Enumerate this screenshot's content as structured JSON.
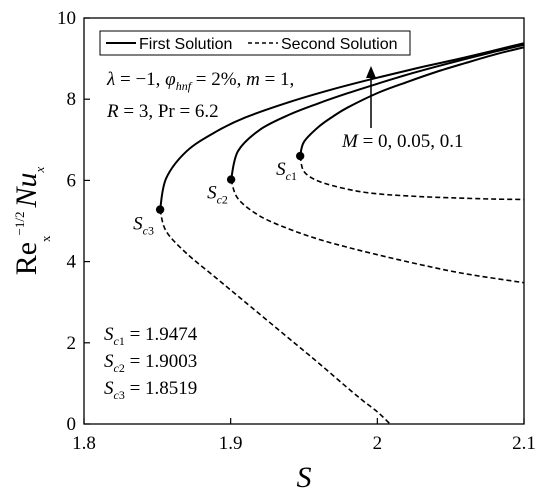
{
  "chart_data": {
    "type": "line",
    "xlabel": "S",
    "ylabel": {
      "main": "Re",
      "sup": "−1/2",
      "sub": "x",
      "tail": "Nu",
      "tail_sub": "x"
    },
    "xlim": [
      1.8,
      2.1
    ],
    "ylim": [
      0,
      10
    ],
    "x_ticks": [
      "1.8",
      "1.9",
      "2",
      "2.1"
    ],
    "y_ticks": [
      "0",
      "2",
      "4",
      "6",
      "8",
      "10"
    ],
    "x_tick_values": [
      1.8,
      1.9,
      2.0,
      2.1
    ],
    "y_tick_values": [
      0,
      2,
      4,
      6,
      8,
      10
    ],
    "grid": false,
    "legend": {
      "position": "top",
      "entries": [
        {
          "label": "First Solution",
          "style": "solid"
        },
        {
          "label": "Second Solution",
          "style": "dashed"
        }
      ]
    },
    "parameters_line1": "λ = −1, φhnf = 2%, m = 1,",
    "parameters_line2": "R = 3, Pr = 6.2",
    "arrow_label": "M = 0, 0.05, 0.1",
    "critical_values": [
      {
        "label": "Sc1 = 1.9474",
        "s": 1.9474,
        "y": 6.6
      },
      {
        "label": "Sc2 = 1.9003",
        "s": 1.9003,
        "y": 6.02
      },
      {
        "label": "Sc3 = 1.8519",
        "s": 1.8519,
        "y": 5.28
      }
    ],
    "series": [
      {
        "curve": "Sc1",
        "first": {
          "x": [
            1.9474,
            1.95,
            1.96,
            1.97,
            1.98,
            2.0,
            2.02,
            2.04,
            2.06,
            2.08,
            2.1
          ],
          "y": [
            6.6,
            6.95,
            7.32,
            7.58,
            7.8,
            8.15,
            8.42,
            8.67,
            8.89,
            9.1,
            9.28
          ]
        },
        "second": {
          "x": [
            1.9474,
            1.95,
            1.96,
            1.98,
            2.0,
            2.03,
            2.06,
            2.08,
            2.1
          ],
          "y": [
            6.6,
            6.22,
            5.98,
            5.78,
            5.67,
            5.6,
            5.56,
            5.54,
            5.53
          ]
        }
      },
      {
        "curve": "Sc2",
        "first": {
          "x": [
            1.9003,
            1.905,
            1.92,
            1.94,
            1.96,
            1.98,
            2.0,
            2.02,
            2.04,
            2.06,
            2.08,
            2.1
          ],
          "y": [
            6.02,
            6.72,
            7.25,
            7.62,
            7.9,
            8.15,
            8.38,
            8.6,
            8.8,
            8.99,
            9.17,
            9.34
          ]
        },
        "second": {
          "x": [
            1.9003,
            1.905,
            1.92,
            1.94,
            1.96,
            1.98,
            2.0,
            2.03,
            2.06,
            2.1
          ],
          "y": [
            6.02,
            5.55,
            5.12,
            4.8,
            4.55,
            4.35,
            4.17,
            3.92,
            3.7,
            3.48
          ]
        }
      },
      {
        "curve": "Sc3",
        "first": {
          "x": [
            1.8519,
            1.856,
            1.87,
            1.89,
            1.91,
            1.94,
            1.97,
            2.0,
            2.03,
            2.06,
            2.1
          ],
          "y": [
            5.28,
            6.05,
            6.72,
            7.2,
            7.55,
            7.93,
            8.25,
            8.53,
            8.79,
            9.03,
            9.38
          ]
        },
        "second": {
          "x": [
            1.8519,
            1.856,
            1.87,
            1.89,
            1.91,
            1.94,
            1.96,
            1.98,
            1.99,
            2.0,
            2.0087
          ],
          "y": [
            5.28,
            4.75,
            4.2,
            3.6,
            3.0,
            2.1,
            1.5,
            0.88,
            0.58,
            0.3,
            0.0
          ]
        }
      }
    ]
  }
}
